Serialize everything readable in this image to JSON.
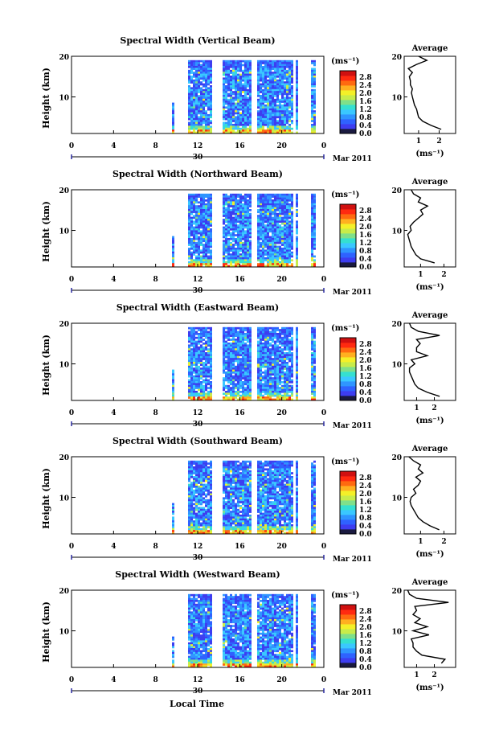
{
  "figure": {
    "xlabel": "Local Time",
    "date_label": "Mar 2011",
    "date_day": "30",
    "unit": "(ms⁻¹)",
    "avg_title": "Average",
    "ylabel": "Height (km)"
  },
  "colors": {
    "scale": [
      "#1a1a40",
      "#3d3df0",
      "#2f62ff",
      "#2f95ff",
      "#3ac8ff",
      "#35e0d0",
      "#7fe08a",
      "#c8ec4a",
      "#f4f028",
      "#ffb020",
      "#ff6a10",
      "#ff2a10",
      "#d01010"
    ]
  },
  "chart_data": [
    {
      "type": "heatmap",
      "title": "Spectral Width (Vertical Beam)",
      "xlabel": "Local Time",
      "ylabel": "Height (km)",
      "xticks": [
        "0",
        "4",
        "8",
        "12",
        "16",
        "20",
        "0"
      ],
      "xlim": [
        0,
        24
      ],
      "yticks": [
        "20",
        "10"
      ],
      "ylim": [
        1,
        20
      ],
      "colorbar": {
        "ticks": [
          "2.8",
          "2.4",
          "2.0",
          "1.6",
          "1.2",
          "0.8",
          "0.4",
          "0.0"
        ]
      },
      "average": {
        "xticks": [
          "1",
          "2"
        ],
        "xlim": [
          0.3,
          2.8
        ],
        "height": [
          2,
          3,
          4,
          5,
          6,
          7,
          8,
          9,
          10,
          11,
          12,
          13,
          14,
          15,
          16,
          17,
          18,
          19,
          20
        ],
        "value": [
          2.1,
          1.6,
          1.2,
          1.0,
          0.95,
          0.9,
          0.8,
          0.75,
          0.7,
          0.65,
          0.7,
          0.6,
          0.6,
          0.55,
          0.7,
          0.5,
          0.9,
          1.4,
          1.0
        ]
      }
    },
    {
      "type": "heatmap",
      "title": "Spectral Width (Northward Beam)",
      "xlabel": "Local Time",
      "ylabel": "Height (km)",
      "xticks": [
        "0",
        "4",
        "8",
        "12",
        "16",
        "20",
        "0"
      ],
      "xlim": [
        0,
        24
      ],
      "yticks": [
        "20",
        "10"
      ],
      "ylim": [
        1,
        20
      ],
      "colorbar": {
        "ticks": [
          "2.8",
          "2.4",
          "2.0",
          "1.6",
          "1.2",
          "0.8",
          "0.4",
          "0.0"
        ]
      },
      "average": {
        "xticks": [
          "1",
          "2"
        ],
        "xlim": [
          0.3,
          2.5
        ],
        "height": [
          2,
          3,
          4,
          5,
          6,
          7,
          8,
          9,
          10,
          11,
          12,
          13,
          14,
          15,
          16,
          17,
          18,
          19,
          20
        ],
        "value": [
          1.6,
          1.0,
          0.8,
          0.7,
          0.6,
          0.55,
          0.5,
          0.45,
          0.6,
          0.55,
          0.7,
          0.9,
          1.1,
          1.0,
          1.3,
          0.9,
          1.0,
          0.7,
          0.6
        ]
      }
    },
    {
      "type": "heatmap",
      "title": "Spectral Width (Eastward Beam)",
      "xlabel": "Local Time",
      "ylabel": "Height (km)",
      "xticks": [
        "0",
        "4",
        "8",
        "12",
        "16",
        "20",
        "0"
      ],
      "xlim": [
        0,
        24
      ],
      "yticks": [
        "20",
        "10"
      ],
      "ylim": [
        1,
        20
      ],
      "colorbar": {
        "ticks": [
          "2.8",
          "2.4",
          "2.0",
          "1.6",
          "1.2",
          "0.8",
          "0.4",
          "0.0"
        ]
      },
      "average": {
        "xticks": [
          "1",
          "2"
        ],
        "xlim": [
          0.3,
          3.2
        ],
        "height": [
          2,
          3,
          4,
          5,
          6,
          7,
          8,
          9,
          10,
          11,
          12,
          13,
          14,
          15,
          16,
          17,
          18,
          19,
          20
        ],
        "value": [
          2.3,
          1.6,
          1.1,
          0.9,
          0.8,
          0.7,
          0.6,
          0.6,
          0.9,
          0.7,
          1.6,
          1.0,
          1.0,
          1.2,
          1.0,
          2.3,
          1.1,
          0.7,
          0.6
        ]
      }
    },
    {
      "type": "heatmap",
      "title": "Spectral Width (Southward Beam)",
      "xlabel": "Local Time",
      "ylabel": "Height (km)",
      "xticks": [
        "0",
        "4",
        "8",
        "12",
        "16",
        "20",
        "0"
      ],
      "xlim": [
        0,
        24
      ],
      "yticks": [
        "20",
        "10"
      ],
      "ylim": [
        1,
        20
      ],
      "colorbar": {
        "ticks": [
          "2.8",
          "2.4",
          "2.0",
          "1.6",
          "1.2",
          "0.8",
          "0.4",
          "0.0"
        ]
      },
      "average": {
        "xticks": [
          "1",
          "2"
        ],
        "xlim": [
          0.3,
          2.5
        ],
        "height": [
          2,
          3,
          4,
          5,
          6,
          7,
          8,
          9,
          10,
          11,
          12,
          13,
          14,
          15,
          16,
          17,
          18,
          19,
          20
        ],
        "value": [
          1.8,
          1.4,
          1.1,
          0.9,
          0.8,
          0.7,
          0.6,
          0.55,
          0.6,
          0.8,
          0.7,
          0.9,
          1.0,
          0.8,
          1.1,
          0.9,
          1.0,
          0.7,
          0.5
        ]
      }
    },
    {
      "type": "heatmap",
      "title": "Spectral Width (Westward Beam)",
      "xlabel": "Local Time",
      "ylabel": "Height (km)",
      "xticks": [
        "0",
        "4",
        "8",
        "12",
        "16",
        "20",
        "0"
      ],
      "xlim": [
        0,
        24
      ],
      "yticks": [
        "20",
        "10"
      ],
      "ylim": [
        1,
        20
      ],
      "colorbar": {
        "ticks": [
          "2.8",
          "2.4",
          "2.0",
          "1.6",
          "1.2",
          "0.8",
          "0.4",
          "0.0"
        ]
      },
      "average": {
        "xticks": [
          "1",
          "2"
        ],
        "xlim": [
          0.3,
          3.2
        ],
        "height": [
          2,
          3,
          4,
          5,
          6,
          7,
          8,
          9,
          10,
          11,
          12,
          13,
          14,
          15,
          16,
          17,
          18,
          19,
          20
        ],
        "value": [
          2.4,
          2.6,
          1.3,
          1.0,
          0.8,
          0.8,
          0.7,
          1.7,
          0.8,
          1.6,
          0.9,
          1.2,
          0.8,
          1.0,
          0.9,
          2.8,
          1.0,
          0.6,
          0.5
        ]
      }
    }
  ]
}
